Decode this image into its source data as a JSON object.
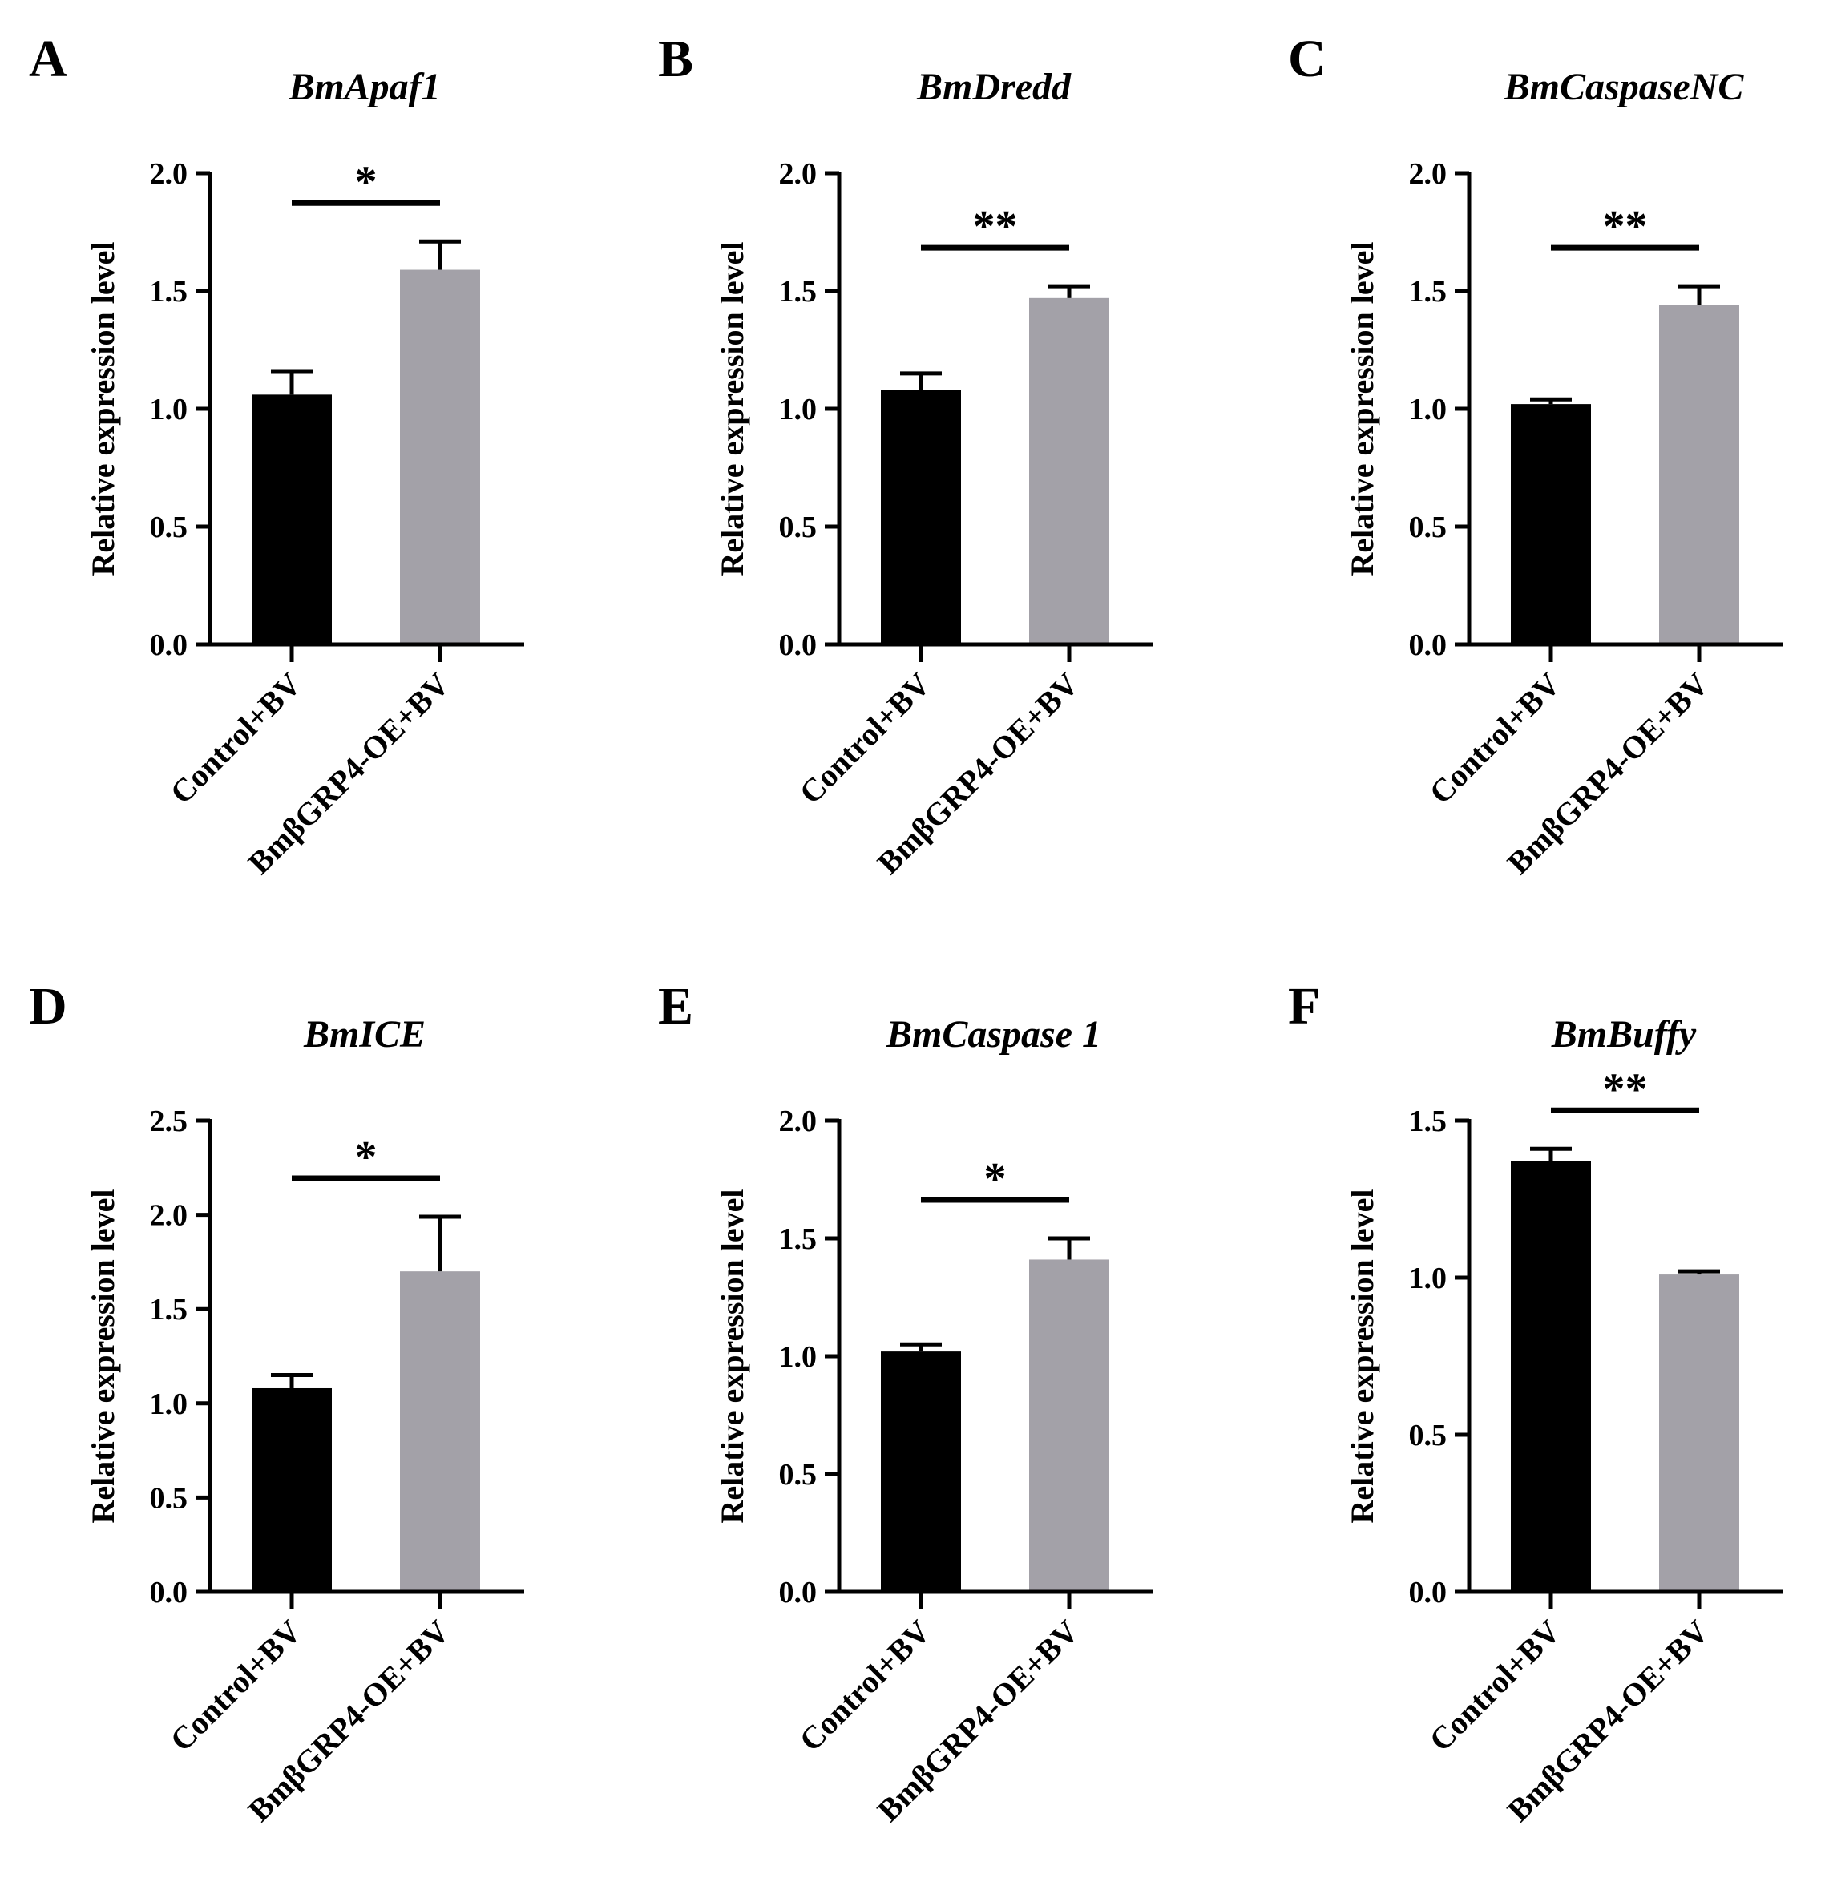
{
  "colors": {
    "control": "#000000",
    "treatment": "#a3a1a8",
    "axis": "#000000"
  },
  "chart_data": [
    {
      "type": "bar",
      "panel": "A",
      "title": "BmApaf1",
      "ylabel": "Relative expression level",
      "categories": [
        "Control+BV",
        "BmβGRP4-OE+BV"
      ],
      "values": [
        1.06,
        1.59
      ],
      "errors": [
        0.1,
        0.12
      ],
      "ylim": [
        0,
        2.0
      ],
      "yticks": [
        "0.0",
        "0.5",
        "1.0",
        "1.5",
        "2.0"
      ],
      "significance": "*"
    },
    {
      "type": "bar",
      "panel": "B",
      "title": "BmDredd",
      "ylabel": "Relative expression level",
      "categories": [
        "Control+BV",
        "BmβGRP4-OE+BV"
      ],
      "values": [
        1.08,
        1.47
      ],
      "errors": [
        0.07,
        0.05
      ],
      "ylim": [
        0,
        2.0
      ],
      "yticks": [
        "0.0",
        "0.5",
        "1.0",
        "1.5",
        "2.0"
      ],
      "significance": "**"
    },
    {
      "type": "bar",
      "panel": "C",
      "title": "BmCaspaseNC",
      "ylabel": "Relative expression level",
      "categories": [
        "Control+BV",
        "BmβGRP4-OE+BV"
      ],
      "values": [
        1.02,
        1.44
      ],
      "errors": [
        0.02,
        0.08
      ],
      "ylim": [
        0,
        2.0
      ],
      "yticks": [
        "0.0",
        "0.5",
        "1.0",
        "1.5",
        "2.0"
      ],
      "significance": "**"
    },
    {
      "type": "bar",
      "panel": "D",
      "title": "BmICE",
      "ylabel": "Relative expression level",
      "categories": [
        "Control+BV",
        "BmβGRP4-OE+BV"
      ],
      "values": [
        1.08,
        1.7
      ],
      "errors": [
        0.07,
        0.29
      ],
      "ylim": [
        0,
        2.5
      ],
      "yticks": [
        "0.0",
        "0.5",
        "1.0",
        "1.5",
        "2.0",
        "2.5"
      ],
      "significance": "*"
    },
    {
      "type": "bar",
      "panel": "E",
      "title": "BmCaspase 1",
      "ylabel": "Relative expression level",
      "categories": [
        "Control+BV",
        "BmβGRP4-OE+BV"
      ],
      "values": [
        1.02,
        1.41
      ],
      "errors": [
        0.03,
        0.09
      ],
      "ylim": [
        0,
        2.0
      ],
      "yticks": [
        "0.0",
        "0.5",
        "1.0",
        "1.5",
        "2.0"
      ],
      "significance": "*"
    },
    {
      "type": "bar",
      "panel": "F",
      "title": "BmBuffy",
      "ylabel": "Relative expression level",
      "categories": [
        "Control+BV",
        "BmβGRP4-OE+BV"
      ],
      "values": [
        1.37,
        1.01
      ],
      "errors": [
        0.04,
        0.01
      ],
      "ylim": [
        0,
        1.5
      ],
      "yticks": [
        "0.0",
        "0.5",
        "1.0",
        "1.5"
      ],
      "significance": "**"
    }
  ]
}
